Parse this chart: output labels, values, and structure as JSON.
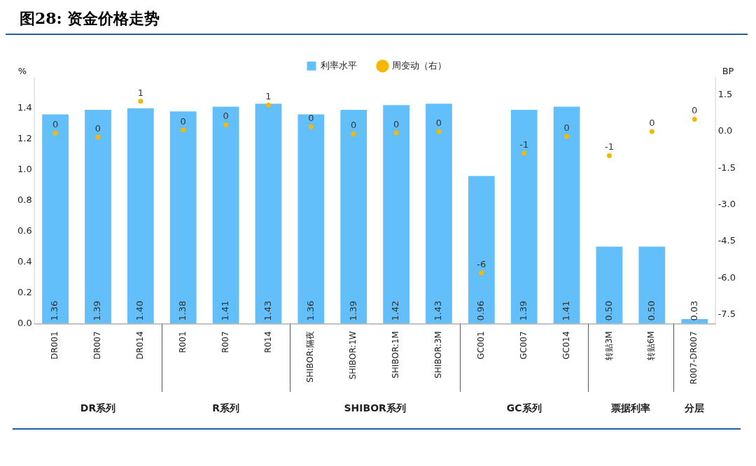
{
  "chart_data": {
    "type": "bar",
    "title": "图28: 资金价格走势",
    "ylabel": "%",
    "y2label": "BP",
    "categories": [
      "DR001",
      "DR007",
      "DR014",
      "R001",
      "R007",
      "R014",
      "SHIBOR:隔夜",
      "SHIBOR:1W",
      "SHIBOR:1M",
      "SHIBOR:3M",
      "GC001",
      "GC007",
      "GC014",
      "转贴3M",
      "转贴6M",
      "R007-DR007"
    ],
    "series": [
      {
        "name": "利率水平",
        "type": "bar",
        "color": "#63bff9",
        "values": [
          1.36,
          1.39,
          1.4,
          1.38,
          1.41,
          1.43,
          1.36,
          1.39,
          1.42,
          1.43,
          0.96,
          1.39,
          1.41,
          0.5,
          0.5,
          0.03
        ],
        "value_labels": [
          "1.36",
          "1.39",
          "1.40",
          "1.38",
          "1.41",
          "1.43",
          "1.36",
          "1.39",
          "1.42",
          "1.43",
          "0.96",
          "1.39",
          "1.41",
          "0.50",
          "0.50",
          "0.03"
        ]
      },
      {
        "name": "周变动（右）",
        "type": "scatter",
        "axis": "y2",
        "color": "#f5b800",
        "values": [
          -0.07,
          -0.23,
          1.24,
          0.06,
          0.27,
          1.08,
          0.19,
          -0.1,
          -0.05,
          0.0,
          -5.79,
          -0.89,
          -0.2,
          -0.99,
          0.0,
          0.5
        ],
        "value_labels": [
          "0",
          "0",
          "1",
          "0",
          "0",
          "1",
          "0",
          "0",
          "0",
          "0",
          "-6",
          "-1",
          "0",
          "-1",
          "0",
          "0"
        ]
      }
    ],
    "ylim": [
      0,
      1.6
    ],
    "yticks": [
      {
        "value": 0,
        "label": "0.0"
      },
      {
        "value": 0.2,
        "label": "0.2"
      },
      {
        "value": 0.4,
        "label": "0.4"
      },
      {
        "value": 0.6,
        "label": "0.6"
      },
      {
        "value": 0.8,
        "label": "0.8"
      },
      {
        "value": 1.0,
        "label": "1.0"
      },
      {
        "value": 1.2,
        "label": "1.2"
      },
      {
        "value": 1.4,
        "label": "1.4"
      }
    ],
    "y2lim": [
      -7.87,
      2.21
    ],
    "y2ticks": [
      {
        "value": 1.5,
        "label": "1.5"
      },
      {
        "value": 0,
        "label": "0.0"
      },
      {
        "value": -1.5,
        "label": "-1.5"
      },
      {
        "value": -3,
        "label": "-3.0"
      },
      {
        "value": -4.5,
        "label": "-4.5"
      },
      {
        "value": -6,
        "label": "-6.0"
      },
      {
        "value": -7.5,
        "label": "-7.5"
      }
    ],
    "grid": false,
    "legend": "top",
    "marker": "circle",
    "annotations": [
      "DR系列",
      "R系列",
      "SHIBOR系列",
      "GC系列",
      "票据利率",
      "分层"
    ]
  }
}
